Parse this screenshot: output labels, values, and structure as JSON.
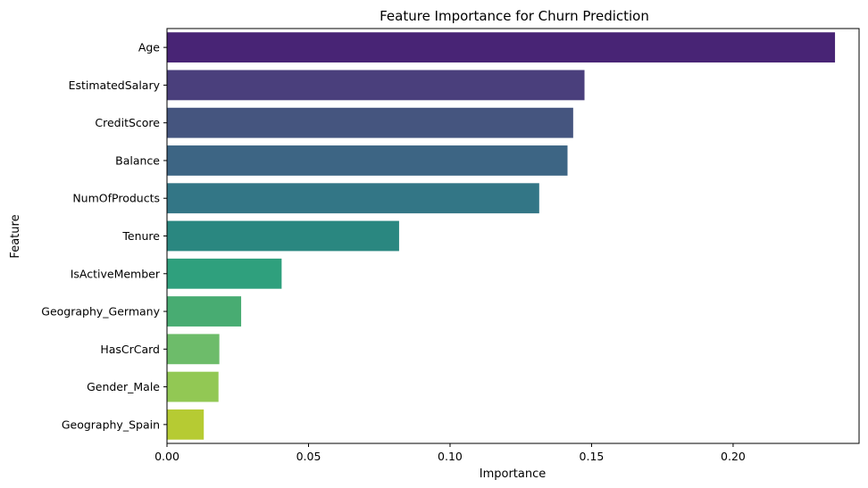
{
  "chart_data": {
    "type": "bar",
    "orientation": "horizontal",
    "title": "Feature Importance for Churn Prediction",
    "xlabel": "Importance",
    "ylabel": "Feature",
    "categories": [
      "Age",
      "EstimatedSalary",
      "CreditScore",
      "Balance",
      "NumOfProducts",
      "Tenure",
      "IsActiveMember",
      "Geography_Germany",
      "HasCrCard",
      "Gender_Male",
      "Geography_Spain"
    ],
    "values": [
      0.236,
      0.1475,
      0.1435,
      0.1415,
      0.1315,
      0.082,
      0.0405,
      0.0262,
      0.0185,
      0.0182,
      0.013
    ],
    "colors": [
      "#482475",
      "#4a3f7c",
      "#45557f",
      "#3d6584",
      "#337686",
      "#2a8780",
      "#2fa07d",
      "#48ac72",
      "#6dbc6a",
      "#92c854",
      "#b6cb33"
    ],
    "xlim": [
      0,
      0.2445
    ],
    "xticks": [
      0.0,
      0.05,
      0.1,
      0.15,
      0.2
    ],
    "xtick_labels": [
      "0.00",
      "0.05",
      "0.10",
      "0.15",
      "0.20"
    ],
    "grid": false
  }
}
